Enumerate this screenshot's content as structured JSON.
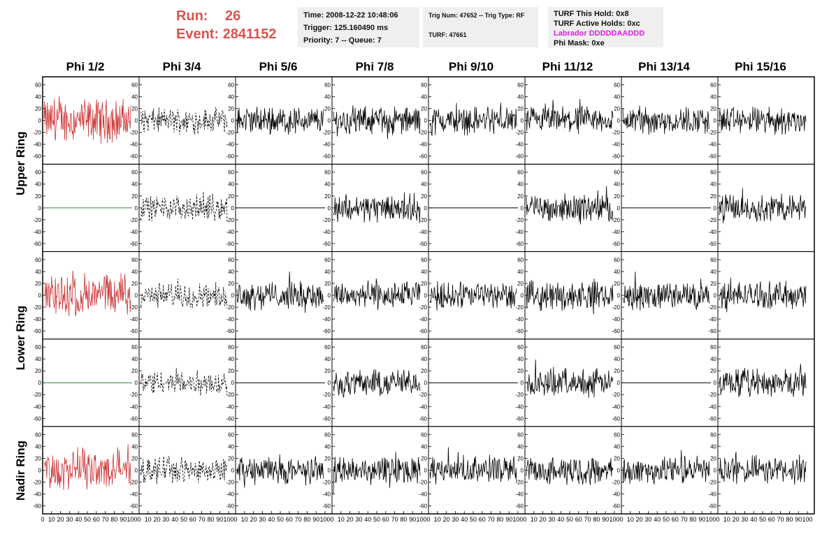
{
  "header": {
    "run_label": "Run:",
    "run_value": "26",
    "event_label": "Event:",
    "event_value": "2841152",
    "time": "Time: 2008-12-22 10:48:06",
    "trigger": "Trigger: 125.160490 ms",
    "priority": "Priority: 7 -- Queue: 7",
    "trig_num": "Trig Num: 47652 -- Trig Type: RF",
    "turf": "TURF: 47661",
    "turf_this_hold": "TURF This Hold: 0x8",
    "turf_active_holds": "TURF Active Holds: 0xc",
    "labrador": "Labrador DDDDDAADDD",
    "phi_mask": "Phi Mask: 0xe"
  },
  "columns": [
    "Phi 1/2",
    "Phi 3/4",
    "Phi 5/6",
    "Phi 7/8",
    "Phi 9/10",
    "Phi 11/12",
    "Phi 13/14",
    "Phi 15/16"
  ],
  "row_groups": [
    "Upper Ring",
    "Lower Ring",
    "Nadir Ring"
  ],
  "colors": {
    "red": "#cc3333",
    "black": "#000000",
    "green": "#2a8a2a",
    "pink": "#e020e0",
    "panel_bg": "#efefef"
  },
  "chart_data": {
    "type": "line",
    "x_ticks": [
      "0",
      "10",
      "20",
      "30",
      "40",
      "50",
      "60",
      "70",
      "80",
      "90",
      "100"
    ],
    "y_ticks": [
      "60",
      "40",
      "20",
      "0",
      "-20",
      "-40",
      "-60"
    ],
    "xlim": [
      0,
      100
    ],
    "ylim": [
      -70,
      70
    ],
    "panels": [
      [
        "red-noise",
        "dashed-noise",
        "noise",
        "noise",
        "noise",
        "noise",
        "noise",
        "noise"
      ],
      [
        "green-flat",
        "dashed-noise",
        "flat",
        "noise",
        "flat",
        "noise",
        "flat",
        "noise"
      ],
      [
        "red-noise",
        "dashed-noise",
        "noise",
        "noise",
        "noise",
        "noise",
        "noise",
        "noise"
      ],
      [
        "green-flat",
        "dashed-noise",
        "flat",
        "noise",
        "flat",
        "noise",
        "flat",
        "noise"
      ],
      [
        "red-noise",
        "dashed-noise",
        "noise",
        "noise",
        "noise",
        "noise",
        "noise",
        "noise"
      ]
    ]
  }
}
